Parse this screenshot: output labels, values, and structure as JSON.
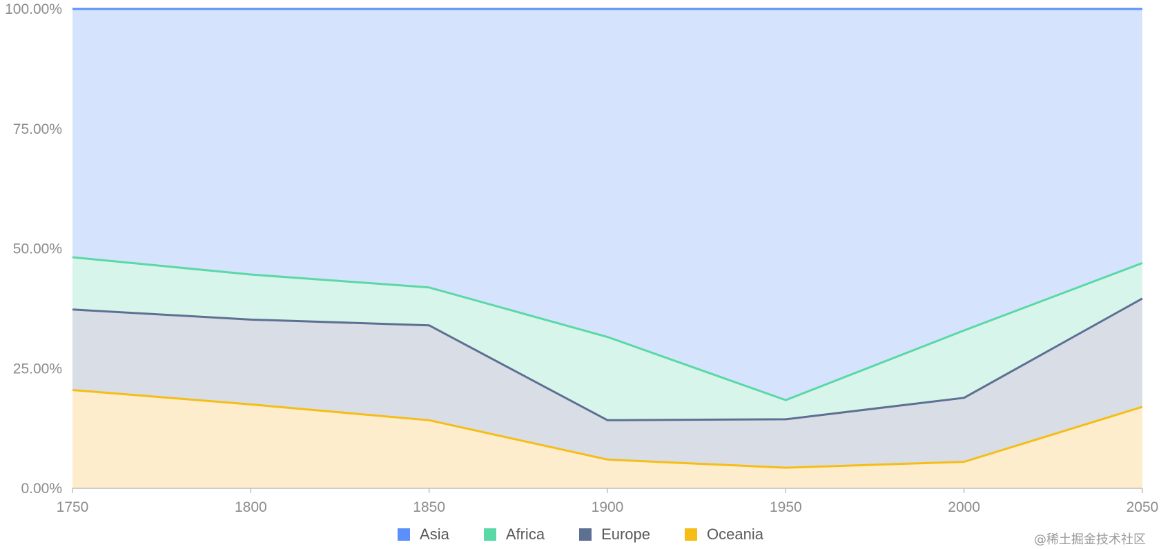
{
  "chart_data": {
    "type": "area",
    "stacking": "percent",
    "x": [
      1750,
      1800,
      1850,
      1900,
      1950,
      2000,
      2050
    ],
    "ylim": [
      0,
      100
    ],
    "y_ticks": [
      "0.00%",
      "25.00%",
      "50.00%",
      "75.00%",
      "100.00%"
    ],
    "x_ticks": [
      "1750",
      "1800",
      "1850",
      "1900",
      "1950",
      "2000",
      "2050"
    ],
    "grid": "horizontal",
    "legend_position": "bottom",
    "series": [
      {
        "name": "Asia",
        "color": "#5B8FF9",
        "fill": "#D6E3FD",
        "values": [
          51.8,
          55.4,
          58.1,
          65.0,
          81.6,
          66.8,
          53.0
        ]
      },
      {
        "name": "Africa",
        "color": "#5AD8A6",
        "fill": "#D7F5EA",
        "values": [
          10.9,
          9.4,
          7.9,
          16.5,
          4.0,
          14.0,
          7.4
        ]
      },
      {
        "name": "Europe",
        "color": "#5D7092",
        "fill": "#D8DDE6",
        "values": [
          16.8,
          17.7,
          19.8,
          7.8,
          10.1,
          13.3,
          22.6
        ]
      },
      {
        "name": "Oceania",
        "color": "#F6BD16",
        "fill": "#FDEDCC",
        "values": [
          20.5,
          17.5,
          14.2,
          5.7,
          4.3,
          5.5,
          17.0
        ]
      }
    ]
  },
  "watermark": "@稀土掘金技术社区"
}
